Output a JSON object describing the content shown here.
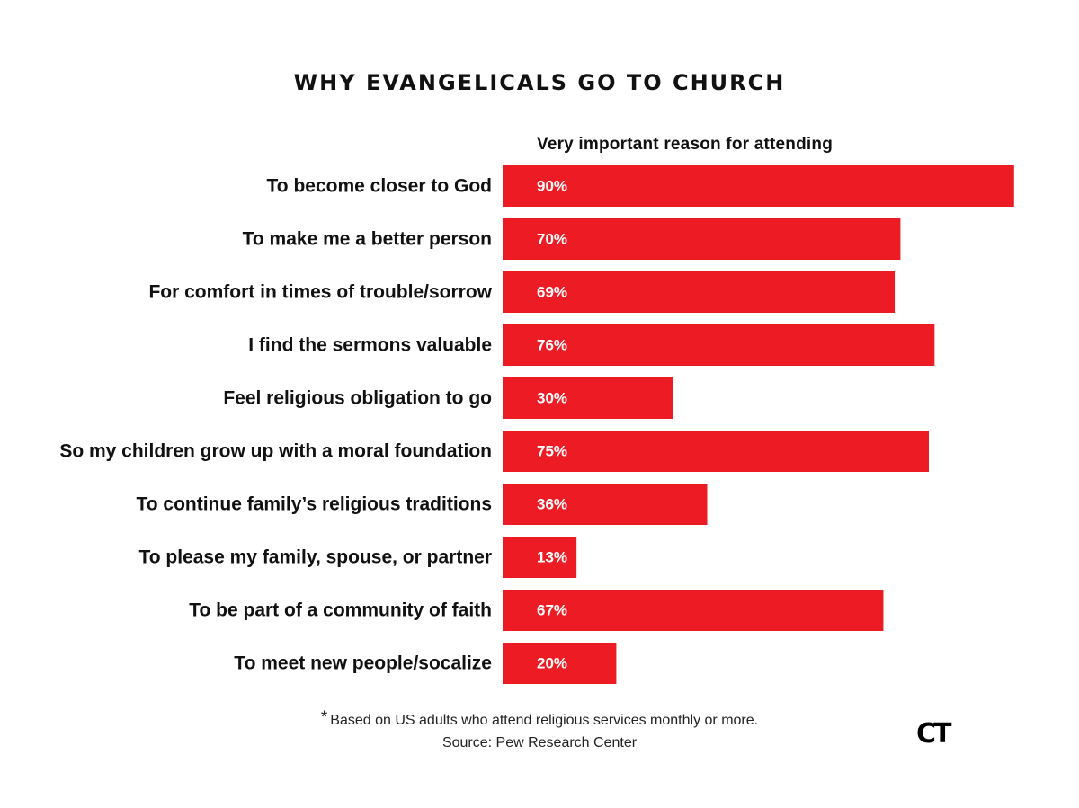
{
  "chart_data": {
    "type": "bar",
    "orientation": "horizontal",
    "title": "WHY EVANGELICALS GO TO CHURCH",
    "subtitle": "Very important reason for attending",
    "categories": [
      "To become closer to God",
      "To make me a better person",
      "For comfort in times of trouble/sorrow",
      "I find the sermons valuable",
      "Feel religious obligation to go",
      "So my children grow up with a moral foundation",
      "To continue family’s religious traditions",
      "To please my family, spouse, or partner",
      "To be part of a community of faith",
      "To meet new people/socalize"
    ],
    "values": [
      90,
      70,
      69,
      76,
      30,
      75,
      36,
      13,
      67,
      20
    ],
    "value_labels": [
      "90%",
      "70%",
      "69%",
      "76%",
      "30%",
      "75%",
      "36%",
      "13%",
      "67%",
      "20%"
    ],
    "xlim": [
      0,
      100
    ],
    "grid": false,
    "bar_color": "#ED1C24"
  },
  "footnote": {
    "star": "*",
    "text": "Based on US adults who attend religious services monthly or more."
  },
  "source": "Source: Pew Research Center",
  "logo_text": "CT"
}
